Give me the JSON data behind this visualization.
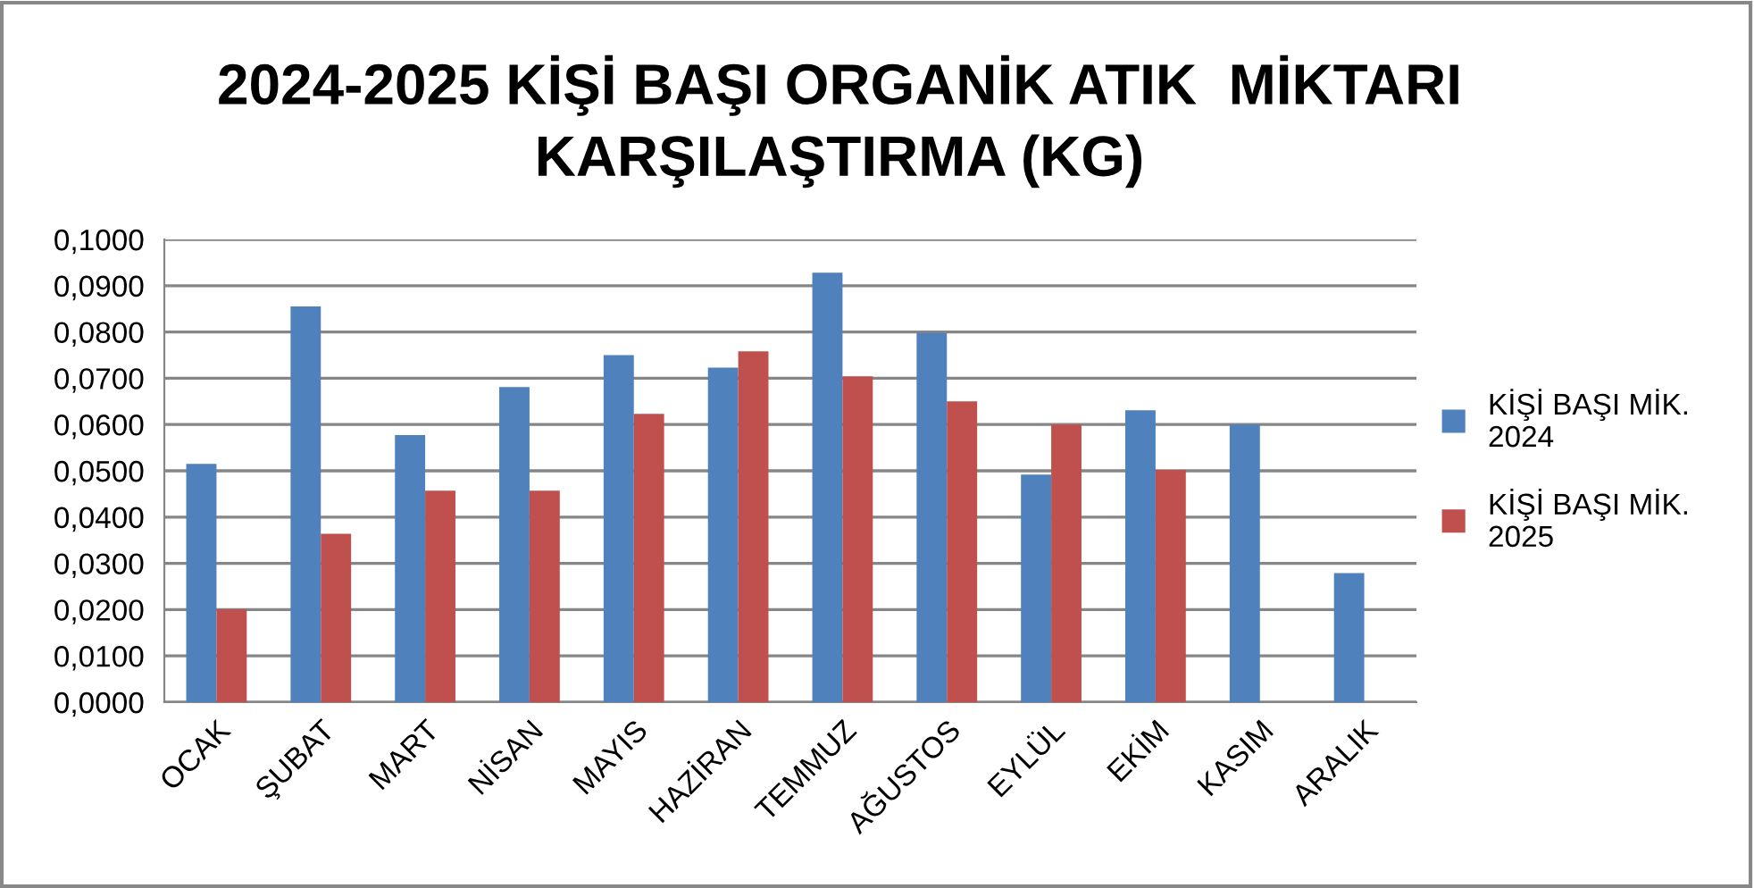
{
  "chart_data": {
    "type": "bar",
    "title": "2024-2025 KİŞİ BAŞI ORGANİK ATIK  MİKTARI\nKARŞILAŞTIRMA (KG)",
    "categories": [
      "OCAK",
      "ŞUBAT",
      "MART",
      "NİSAN",
      "MAYIS",
      "HAZİRAN",
      "TEMMUZ",
      "AĞUSTOS",
      "EYLÜL",
      "EKİM",
      "KASIM",
      "ARALIK"
    ],
    "series": [
      {
        "name": "KİŞİ BAŞI MİK. 2024",
        "color": "#4f81bd",
        "values": [
          0.0515,
          0.0855,
          0.0577,
          0.0681,
          0.075,
          0.0723,
          0.0928,
          0.0798,
          0.0492,
          0.0631,
          0.06,
          0.0279
        ]
      },
      {
        "name": "KİŞİ BAŞI MİK. 2025",
        "color": "#c0504d",
        "values": [
          0.0201,
          0.0364,
          0.0457,
          0.0457,
          0.0623,
          0.0758,
          0.0704,
          0.065,
          0.06,
          0.0502,
          null,
          null
        ]
      }
    ],
    "ylim": [
      0,
      0.1
    ],
    "yticks": [
      {
        "value": 0,
        "label": "0,0000"
      },
      {
        "value": 0.01,
        "label": "0,0100"
      },
      {
        "value": 0.02,
        "label": "0,0200"
      },
      {
        "value": 0.03,
        "label": "0,0300"
      },
      {
        "value": 0.04,
        "label": "0,0400"
      },
      {
        "value": 0.05,
        "label": "0,0500"
      },
      {
        "value": 0.06,
        "label": "0,0600"
      },
      {
        "value": 0.07,
        "label": "0,0700"
      },
      {
        "value": 0.08,
        "label": "0,0800"
      },
      {
        "value": 0.09,
        "label": "0,0900"
      },
      {
        "value": 0.1,
        "label": "0,1000"
      }
    ],
    "grid": "y",
    "legend": "right"
  }
}
